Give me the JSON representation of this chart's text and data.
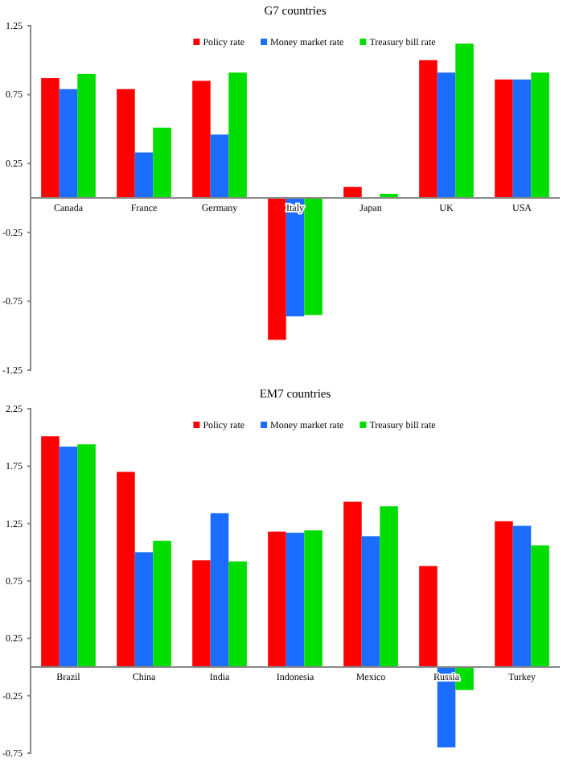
{
  "chart_data": [
    {
      "type": "bar",
      "title": "G7 countries",
      "categories": [
        "Canada",
        "France",
        "Germany",
        "Italy",
        "Japan",
        "UK",
        "USA"
      ],
      "series": [
        {
          "name": "Policy rate",
          "color": "#ff0000",
          "values": [
            0.87,
            0.79,
            0.85,
            -1.03,
            0.08,
            1.0,
            0.86
          ]
        },
        {
          "name": "Money market rate",
          "color": "#1a6dff",
          "values": [
            0.79,
            0.33,
            0.46,
            -0.86,
            null,
            0.91,
            0.86
          ]
        },
        {
          "name": "Treasury bill rate",
          "color": "#00dd00",
          "values": [
            0.9,
            0.51,
            0.91,
            -0.85,
            0.03,
            1.12,
            0.91
          ]
        }
      ],
      "ylim": [
        -1.25,
        1.25
      ],
      "yticks": [
        1.25,
        0.75,
        0.25,
        -0.25,
        -0.75,
        -1.25
      ],
      "grid": false,
      "legend": "top"
    },
    {
      "type": "bar",
      "title": "EM7 countries",
      "categories": [
        "Brazil",
        "China",
        "India",
        "Indonesia",
        "Mexico",
        "Russia",
        "Turkey"
      ],
      "series": [
        {
          "name": "Policy rate",
          "color": "#ff0000",
          "values": [
            2.01,
            1.7,
            0.93,
            1.18,
            1.44,
            0.88,
            1.27
          ]
        },
        {
          "name": "Money market rate",
          "color": "#1a6dff",
          "values": [
            1.92,
            1.0,
            1.34,
            1.17,
            1.14,
            -0.7,
            1.23
          ]
        },
        {
          "name": "Treasury bill rate",
          "color": "#00dd00",
          "values": [
            1.94,
            1.1,
            0.92,
            1.19,
            1.4,
            -0.2,
            1.06
          ]
        }
      ],
      "ylim": [
        -0.75,
        2.25
      ],
      "yticks": [
        2.25,
        1.75,
        1.25,
        0.75,
        0.25,
        -0.25,
        -0.75
      ],
      "grid": false,
      "legend": "top"
    }
  ]
}
